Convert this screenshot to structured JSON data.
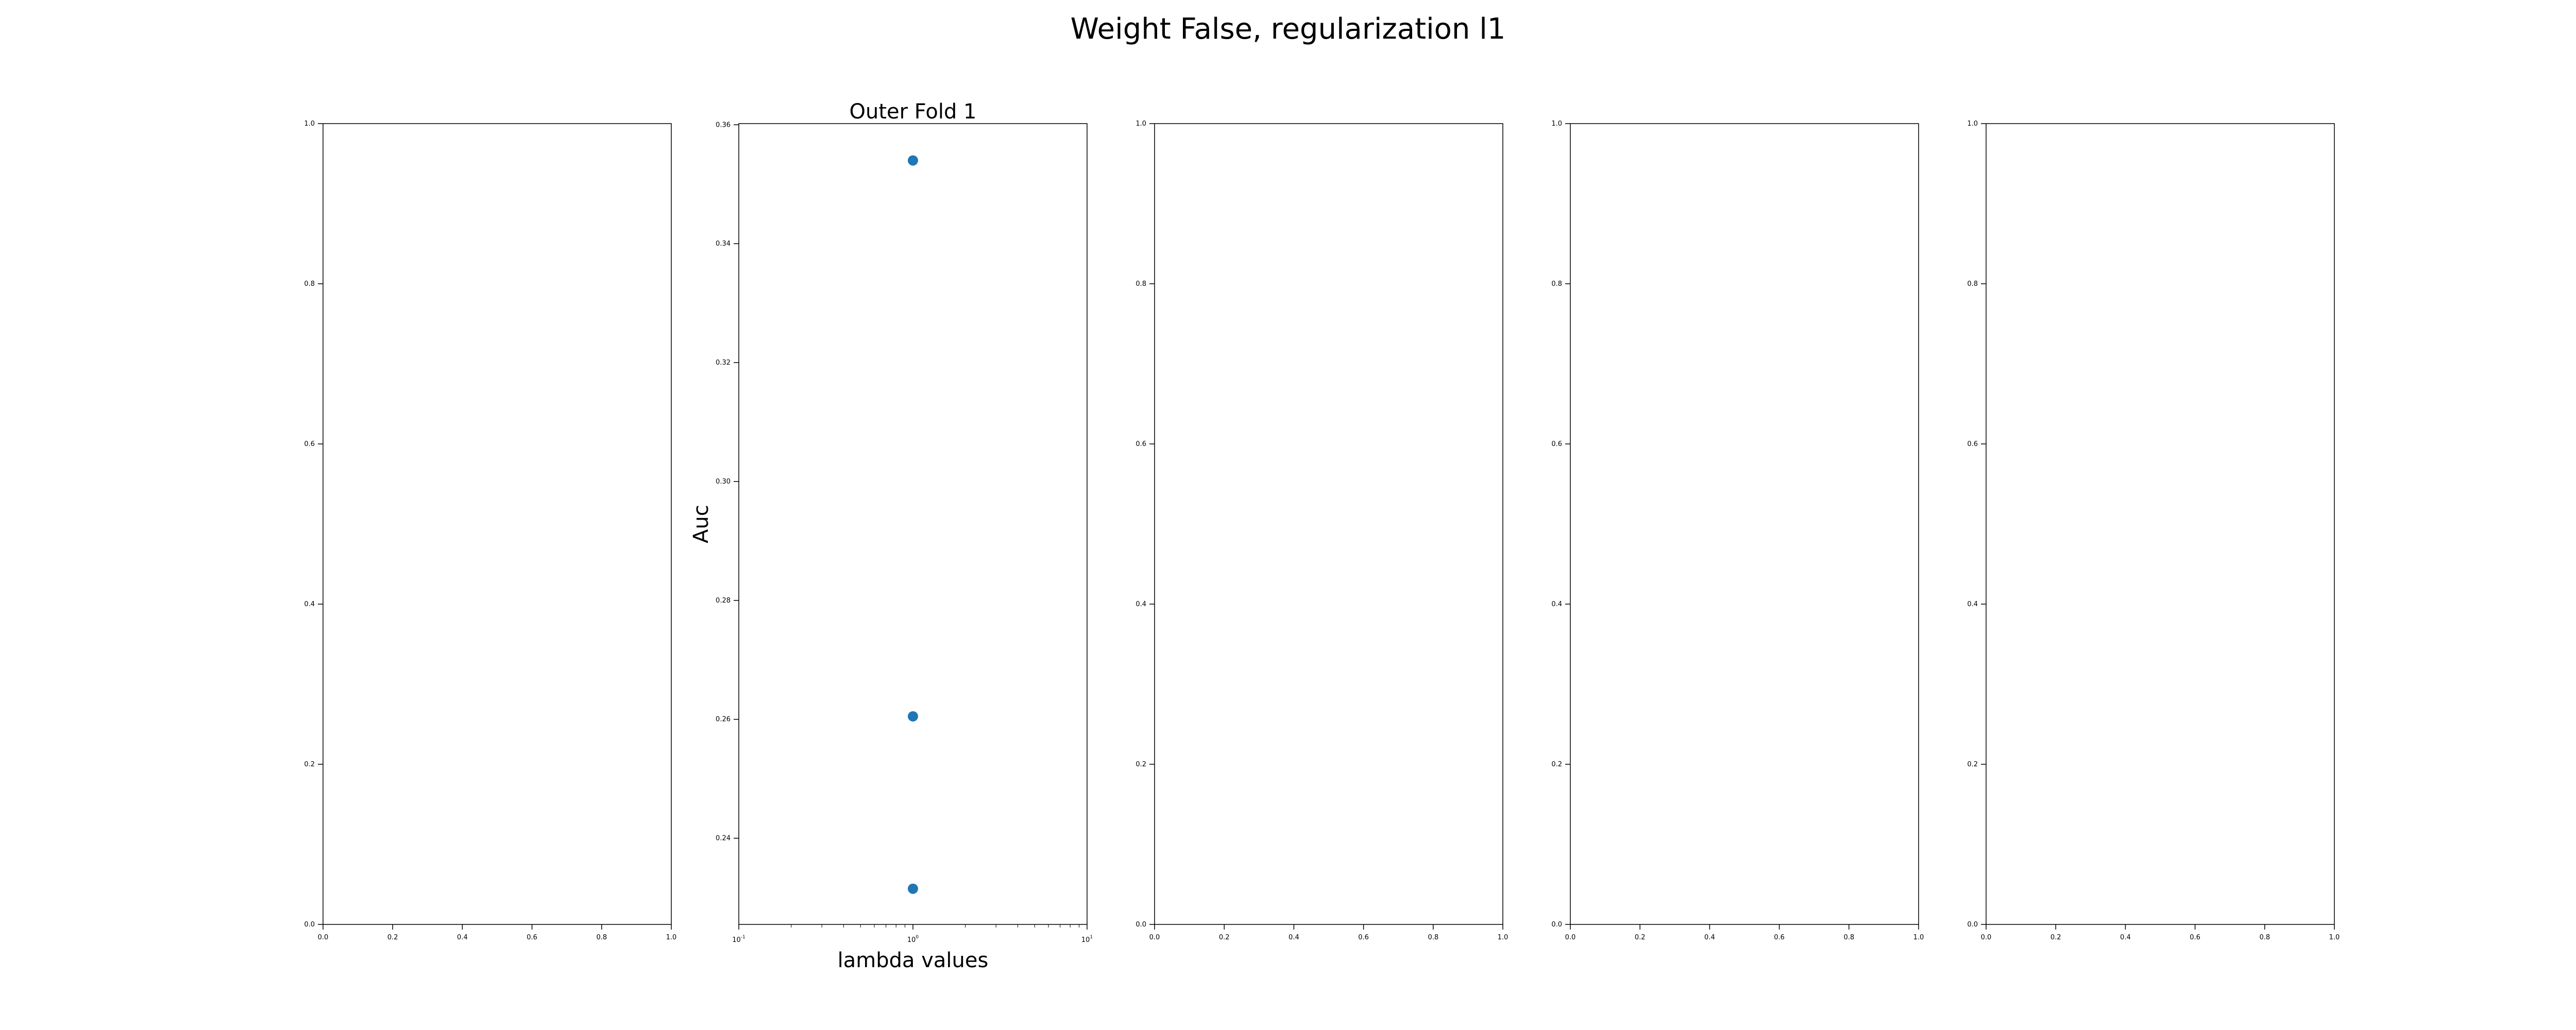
{
  "figure": {
    "title": "Weight False, regularization l1"
  },
  "colors": {
    "marker": "#1f77b4",
    "frame": "#000000",
    "background": "#ffffff"
  },
  "chart_data": [
    {
      "type": "scatter",
      "title": "",
      "xlabel": "",
      "ylabel": "",
      "xlim": [
        0,
        1
      ],
      "ylim": [
        0,
        1
      ],
      "xticks": [
        "0.0",
        "0.2",
        "0.4",
        "0.6",
        "0.8",
        "1.0"
      ],
      "yticks": [
        "0.0",
        "0.2",
        "0.4",
        "0.6",
        "0.8",
        "1.0"
      ],
      "points": [],
      "grid": false
    },
    {
      "type": "scatter",
      "title": "Outer Fold 1",
      "xlabel": "lambda values",
      "ylabel": "Auc",
      "xscale": "log",
      "xlim": [
        0.1,
        10
      ],
      "ylim": [
        0.2255,
        0.3602
      ],
      "xticks": [
        {
          "base": "10",
          "exp": "-1",
          "value": 0.1
        },
        {
          "base": "10",
          "exp": "0",
          "value": 1
        },
        {
          "base": "10",
          "exp": "1",
          "value": 10
        }
      ],
      "yticks": [
        "0.24",
        "0.26",
        "0.28",
        "0.30",
        "0.32",
        "0.34",
        "0.36"
      ],
      "points": [
        {
          "x": 1,
          "y": 0.354
        },
        {
          "x": 1,
          "y": 0.2605
        },
        {
          "x": 1,
          "y": 0.2315
        }
      ],
      "grid": false
    },
    {
      "type": "scatter",
      "title": "",
      "xlabel": "",
      "ylabel": "",
      "xlim": [
        0,
        1
      ],
      "ylim": [
        0,
        1
      ],
      "xticks": [
        "0.0",
        "0.2",
        "0.4",
        "0.6",
        "0.8",
        "1.0"
      ],
      "yticks": [
        "0.0",
        "0.2",
        "0.4",
        "0.6",
        "0.8",
        "1.0"
      ],
      "points": [],
      "grid": false
    },
    {
      "type": "scatter",
      "title": "",
      "xlabel": "",
      "ylabel": "",
      "xlim": [
        0,
        1
      ],
      "ylim": [
        0,
        1
      ],
      "xticks": [
        "0.0",
        "0.2",
        "0.4",
        "0.6",
        "0.8",
        "1.0"
      ],
      "yticks": [
        "0.0",
        "0.2",
        "0.4",
        "0.6",
        "0.8",
        "1.0"
      ],
      "points": [],
      "grid": false
    },
    {
      "type": "scatter",
      "title": "",
      "xlabel": "",
      "ylabel": "",
      "xlim": [
        0,
        1
      ],
      "ylim": [
        0,
        1
      ],
      "xticks": [
        "0.0",
        "0.2",
        "0.4",
        "0.6",
        "0.8",
        "1.0"
      ],
      "yticks": [
        "0.0",
        "0.2",
        "0.4",
        "0.6",
        "0.8",
        "1.0"
      ],
      "points": [],
      "grid": false
    }
  ]
}
